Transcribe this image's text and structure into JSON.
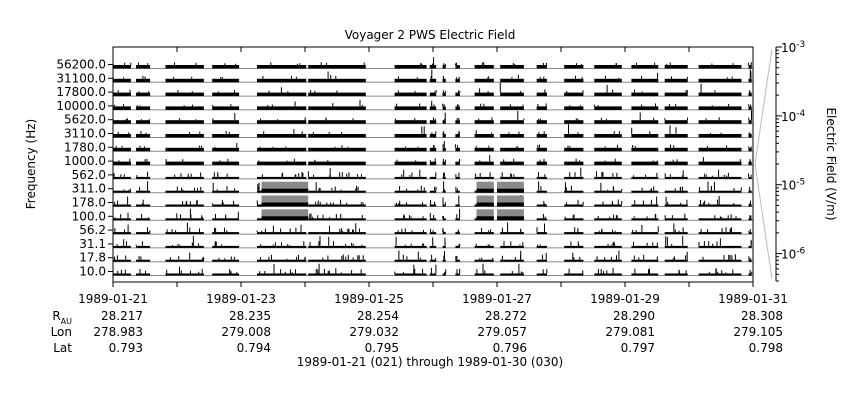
{
  "chart_data": {
    "type": "heatmap",
    "title": "Voyager 2 PWS Electric Field",
    "ylabel": "Frequency (Hz)",
    "y_ticks": [
      "56200.0",
      "31100.0",
      "17800.0",
      "10000.0",
      "5620.0",
      "3110.0",
      "1780.0",
      "1000.0",
      "562.0",
      "311.0",
      "178.0",
      "100.0",
      "56.2",
      "31.1",
      "17.8",
      "10.0"
    ],
    "channels_hz": [
      56200,
      31100,
      17800,
      10000,
      5620,
      3110,
      1780,
      1000,
      562,
      311,
      178,
      100,
      56.2,
      31.1,
      17.8,
      10.0
    ],
    "x_range": [
      "1989-01-21",
      "1989-01-31"
    ],
    "x_ticks": [
      "1989-01-21",
      "1989-01-23",
      "1989-01-25",
      "1989-01-27",
      "1989-01-29",
      "1989-01-31"
    ],
    "x_tick_days": [
      0,
      2,
      4,
      6,
      8,
      10
    ],
    "colorbar": {
      "label": "Electric Field (V/m)",
      "scale": "log",
      "range": [
        4e-07,
        0.001
      ],
      "tick_base": "10",
      "tick_exponents": [
        "-3",
        "-4",
        "-5",
        "-6"
      ]
    },
    "ephemeris": {
      "rows": [
        {
          "label_main": "R",
          "label_sub": "AU",
          "values": [
            "28.217",
            "28.235",
            "28.254",
            "28.272",
            "28.290",
            "28.308"
          ]
        },
        {
          "label_main": "Lon",
          "label_sub": "",
          "values": [
            "278.983",
            "279.008",
            "279.032",
            "279.057",
            "279.081",
            "279.105"
          ]
        },
        {
          "label_main": "Lat",
          "label_sub": "",
          "values": [
            "0.793",
            "0.794",
            "0.795",
            "0.796",
            "0.797",
            "0.798"
          ]
        }
      ]
    },
    "footer": "1989-01-21 (021) through 1989-01-30 (030)",
    "data_segments_days": [
      [
        0.0,
        0.28
      ],
      [
        0.36,
        0.58
      ],
      [
        0.82,
        1.42
      ],
      [
        1.55,
        1.97
      ],
      [
        2.25,
        3.02
      ],
      [
        3.05,
        3.95
      ],
      [
        4.4,
        4.9
      ],
      [
        4.95,
        5.05
      ],
      [
        5.15,
        5.2
      ],
      [
        5.35,
        5.42
      ],
      [
        5.65,
        5.95
      ],
      [
        6.05,
        6.42
      ],
      [
        6.62,
        6.78
      ],
      [
        7.05,
        7.35
      ],
      [
        7.52,
        7.95
      ],
      [
        8.1,
        8.52
      ],
      [
        8.62,
        8.98
      ],
      [
        9.15,
        9.82
      ],
      [
        9.93,
        9.98
      ]
    ],
    "bursts": [
      {
        "start_day": 2.32,
        "end_day": 3.05,
        "channels_hz": [
          311,
          178,
          100
        ],
        "level_vm": 1.5e-05
      },
      {
        "start_day": 5.68,
        "end_day": 5.95,
        "channels_hz": [
          311,
          178,
          100
        ],
        "level_vm": 1.5e-05
      },
      {
        "start_day": 6.0,
        "end_day": 6.42,
        "channels_hz": [
          311,
          178,
          100
        ],
        "level_vm": 1.5e-05
      }
    ]
  }
}
